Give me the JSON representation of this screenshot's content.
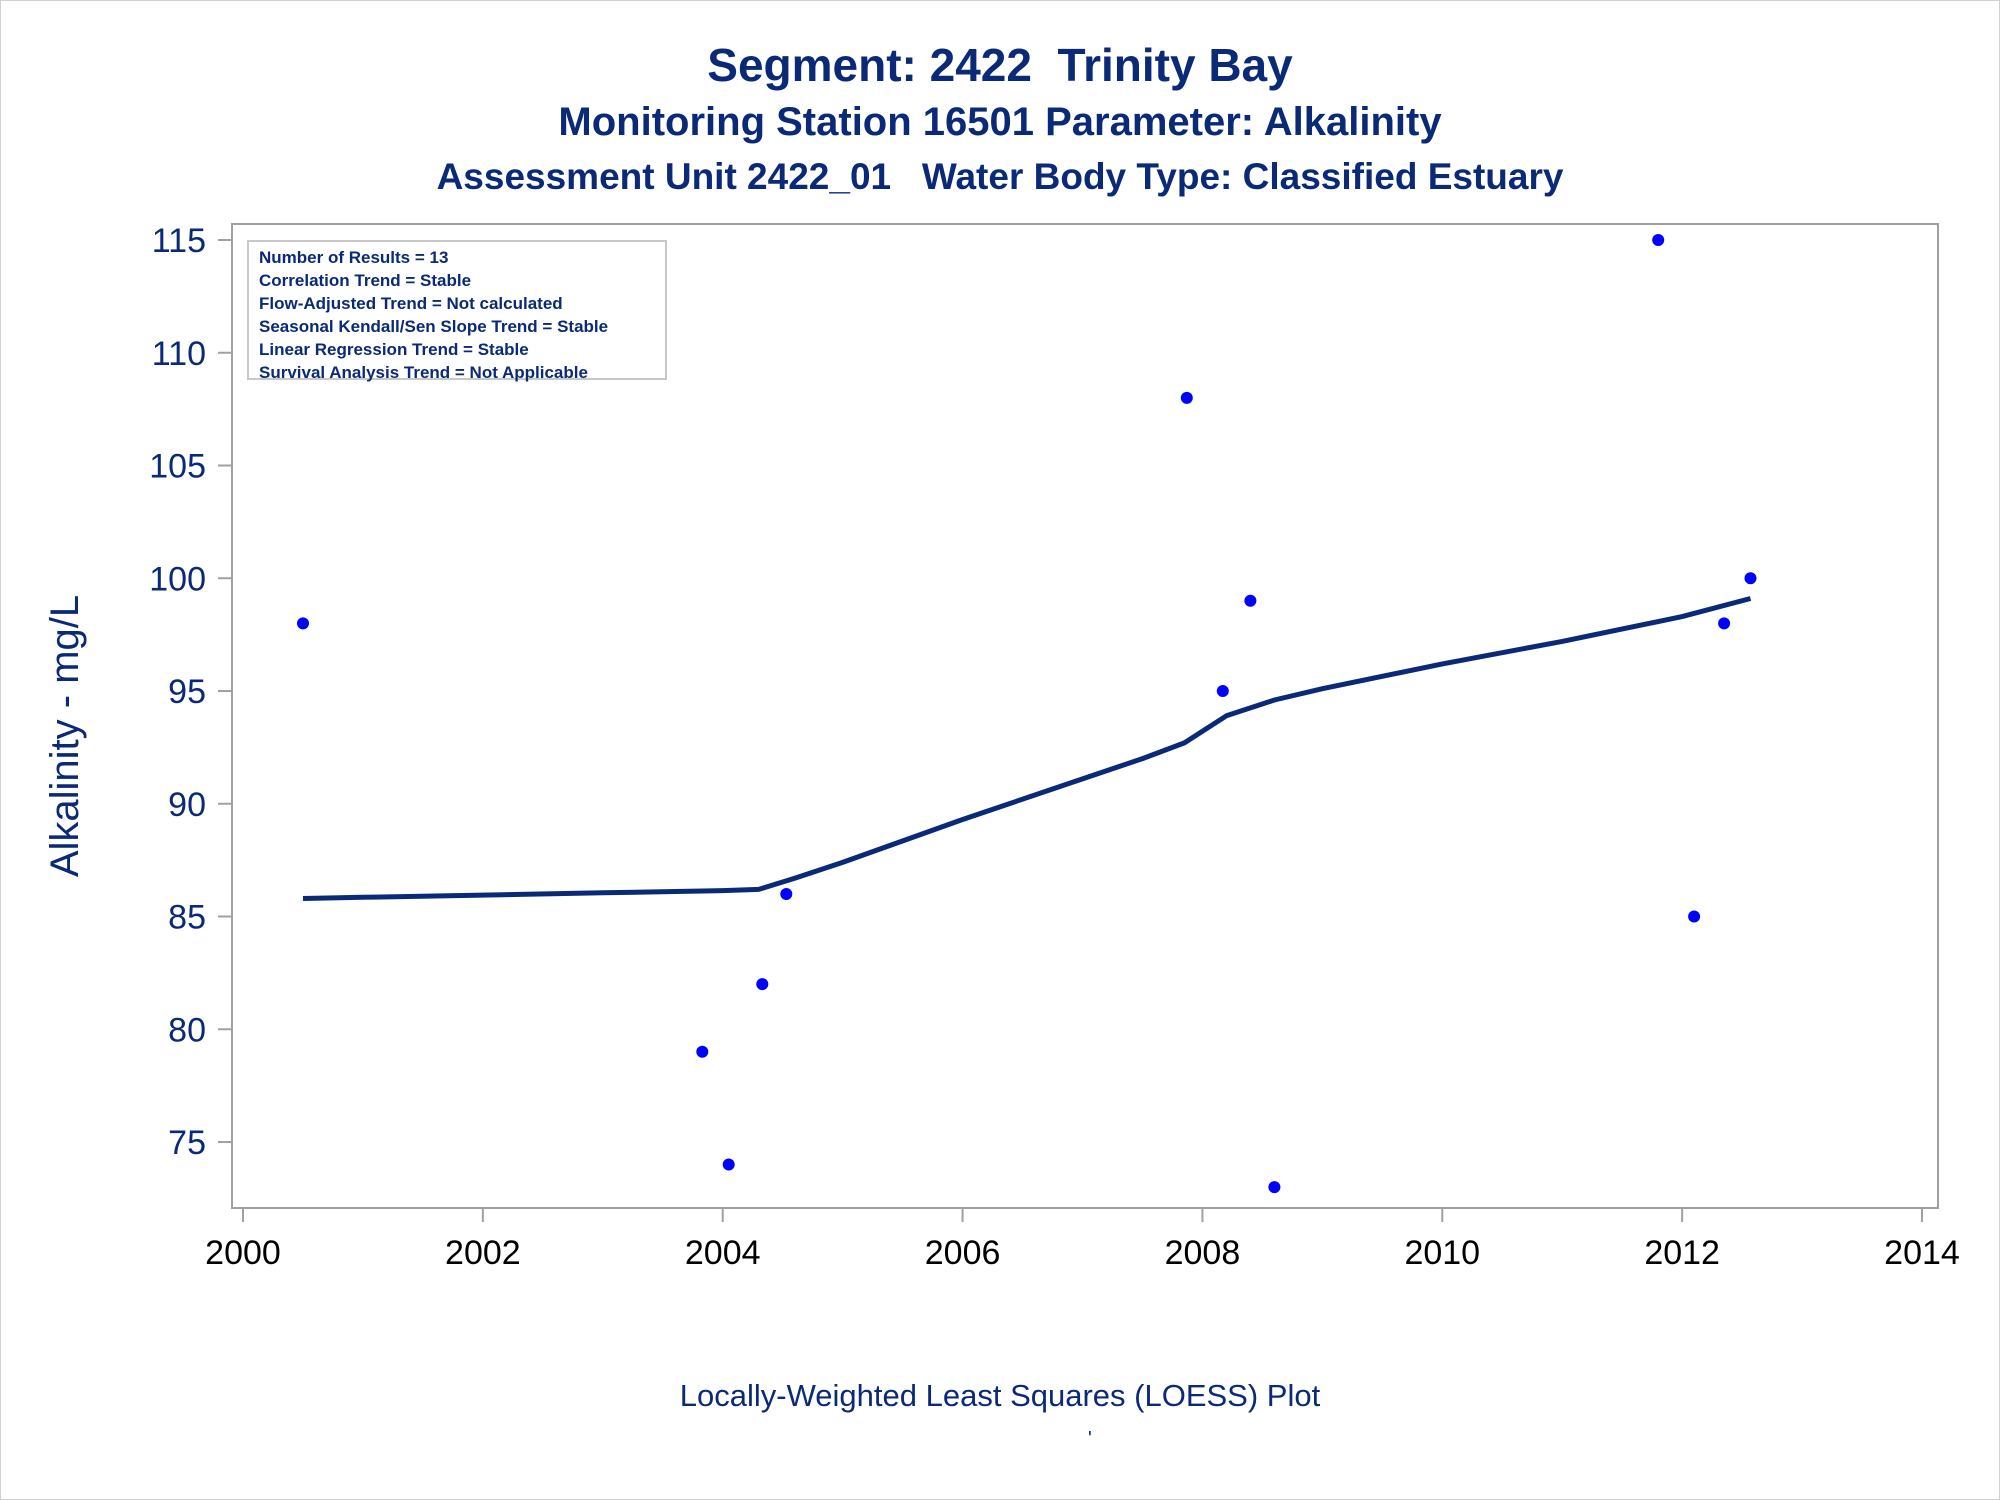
{
  "titles": {
    "line1": "Segment: 2422  Trinity Bay",
    "line2": "Monitoring Station 16501 Parameter: Alkalinity",
    "line3": "Assessment Unit 2422_01   Water Body Type: Classified Estuary"
  },
  "stats_box": {
    "lines": [
      "Number of Results = 13",
      "Correlation Trend = Stable",
      "Flow-Adjusted Trend = Not calculated",
      "Seasonal Kendall/Sen Slope Trend = Stable",
      "Linear Regression Trend = Stable",
      "Survival Analysis Trend = Not Applicable"
    ]
  },
  "footnote": "Locally-Weighted Least Squares (LOESS) Plot",
  "footnote_mark": "'",
  "colors": {
    "text": "#0a2a78",
    "points": "#0000ff",
    "loess_line": "#0a2a78",
    "axis": "#a0a0a0"
  },
  "chart_data": {
    "type": "scatter",
    "xlabel": "",
    "ylabel": "Alkalinity - mg/L",
    "xlim": [
      2000,
      2014
    ],
    "ylim": [
      72.5,
      116
    ],
    "xticks": [
      2000,
      2002,
      2004,
      2006,
      2008,
      2010,
      2012,
      2014
    ],
    "yticks": [
      75,
      80,
      85,
      90,
      95,
      100,
      105,
      110,
      115
    ],
    "grid": false,
    "series": [
      {
        "kind": "points",
        "points": [
          {
            "x": 2000.5,
            "y": 98
          },
          {
            "x": 2003.83,
            "y": 79
          },
          {
            "x": 2004.05,
            "y": 74
          },
          {
            "x": 2004.33,
            "y": 82
          },
          {
            "x": 2004.53,
            "y": 86
          },
          {
            "x": 2007.87,
            "y": 108
          },
          {
            "x": 2008.17,
            "y": 95
          },
          {
            "x": 2008.4,
            "y": 99
          },
          {
            "x": 2008.6,
            "y": 73
          },
          {
            "x": 2011.8,
            "y": 115
          },
          {
            "x": 2012.1,
            "y": 85
          },
          {
            "x": 2012.35,
            "y": 98
          },
          {
            "x": 2012.57,
            "y": 100
          }
        ]
      },
      {
        "kind": "loess",
        "points": [
          {
            "x": 2000.5,
            "y": 85.8
          },
          {
            "x": 2001.0,
            "y": 85.85
          },
          {
            "x": 2002.0,
            "y": 85.95
          },
          {
            "x": 2003.0,
            "y": 86.05
          },
          {
            "x": 2004.0,
            "y": 86.15
          },
          {
            "x": 2004.3,
            "y": 86.2
          },
          {
            "x": 2004.6,
            "y": 86.7
          },
          {
            "x": 2005.0,
            "y": 87.4
          },
          {
            "x": 2006.0,
            "y": 89.3
          },
          {
            "x": 2007.0,
            "y": 91.1
          },
          {
            "x": 2007.5,
            "y": 92.0
          },
          {
            "x": 2007.85,
            "y": 92.7
          },
          {
            "x": 2008.2,
            "y": 93.9
          },
          {
            "x": 2008.6,
            "y": 94.6
          },
          {
            "x": 2009.0,
            "y": 95.1
          },
          {
            "x": 2010.0,
            "y": 96.2
          },
          {
            "x": 2011.0,
            "y": 97.2
          },
          {
            "x": 2012.0,
            "y": 98.3
          },
          {
            "x": 2012.57,
            "y": 99.1
          }
        ]
      }
    ]
  }
}
